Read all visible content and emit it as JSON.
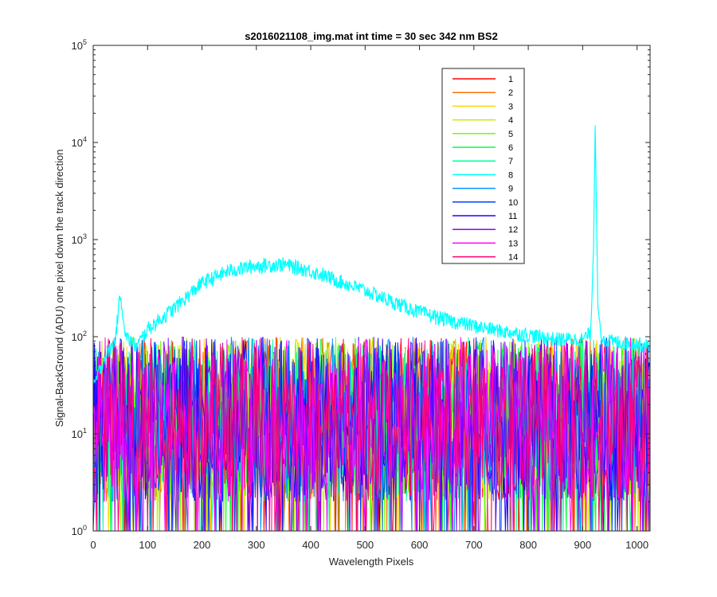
{
  "chart_data": {
    "type": "line",
    "title": "s2016021108_img.mat int time = 30 sec  342 nm BS2",
    "xlabel": "Wavelength Pixels",
    "ylabel": "Signal-BackGround (ADU) one pixel down the track direction",
    "xlim": [
      0,
      1024
    ],
    "ylim": [
      1,
      100000
    ],
    "yscale": "log",
    "xticks": [
      0,
      100,
      200,
      300,
      400,
      500,
      600,
      700,
      800,
      900,
      1000
    ],
    "xtick_labels": [
      "0",
      "100",
      "200",
      "300",
      "400",
      "500",
      "600",
      "700",
      "800",
      "900",
      "1000"
    ],
    "yticks": [
      1,
      10,
      100,
      1000,
      10000,
      100000
    ],
    "ytick_labels": [
      {
        "base": "10",
        "exp": "0"
      },
      {
        "base": "10",
        "exp": "1"
      },
      {
        "base": "10",
        "exp": "2"
      },
      {
        "base": "10",
        "exp": "3"
      },
      {
        "base": "10",
        "exp": "4"
      },
      {
        "base": "10",
        "exp": "5"
      }
    ],
    "grid": false,
    "legend_position": "top-right",
    "series": [
      {
        "name": "1",
        "color": "#ff0000",
        "noise": true
      },
      {
        "name": "2",
        "color": "#ff7000",
        "noise": true
      },
      {
        "name": "3",
        "color": "#ffd700",
        "noise": true
      },
      {
        "name": "4",
        "color": "#c0f000",
        "noise": true
      },
      {
        "name": "5",
        "color": "#70ff00",
        "noise": true
      },
      {
        "name": "6",
        "color": "#00ff40",
        "noise": true
      },
      {
        "name": "7",
        "color": "#00ffa0",
        "noise": true
      },
      {
        "name": "8",
        "color": "#00ffff",
        "noise": false,
        "x": [
          0,
          20,
          40,
          50,
          60,
          80,
          100,
          150,
          200,
          250,
          300,
          350,
          400,
          450,
          500,
          550,
          600,
          650,
          700,
          750,
          800,
          850,
          900,
          915,
          920,
          923,
          925,
          928,
          935,
          950,
          1000,
          1024
        ],
        "y": [
          30,
          60,
          90,
          280,
          100,
          80,
          120,
          200,
          360,
          480,
          540,
          560,
          480,
          380,
          300,
          230,
          180,
          150,
          130,
          115,
          105,
          95,
          95,
          110,
          800,
          15000,
          3000,
          200,
          100,
          90,
          85,
          80
        ]
      },
      {
        "name": "9",
        "color": "#0095ff",
        "noise": true
      },
      {
        "name": "10",
        "color": "#0040ff",
        "noise": true
      },
      {
        "name": "11",
        "color": "#2000ff",
        "noise": true
      },
      {
        "name": "12",
        "color": "#9000ff",
        "noise": true
      },
      {
        "name": "13",
        "color": "#ff00ff",
        "noise": true
      },
      {
        "name": "14",
        "color": "#ff0070",
        "noise": true
      }
    ],
    "noise_level": {
      "typical_min": 2,
      "typical_max": 100
    }
  }
}
